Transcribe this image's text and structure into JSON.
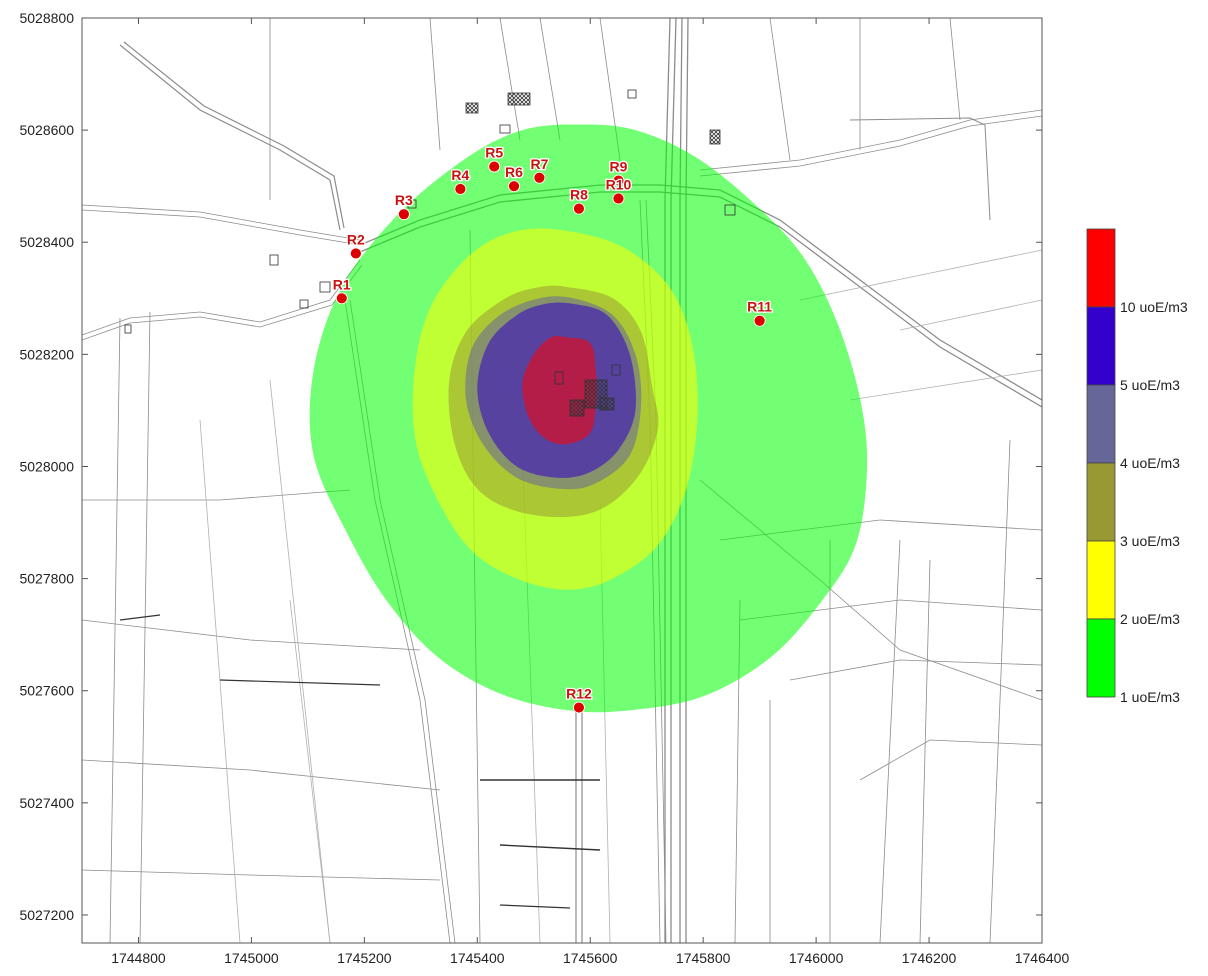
{
  "x_axis": {
    "range": [
      1744700,
      1746400
    ],
    "ticks": [
      {
        "value": 1744800,
        "label": "1744800"
      },
      {
        "value": 1745000,
        "label": "1745000"
      },
      {
        "value": 1745200,
        "label": "1745200"
      },
      {
        "value": 1745400,
        "label": "1745400"
      },
      {
        "value": 1745600,
        "label": "1745600"
      },
      {
        "value": 1745800,
        "label": "1745800"
      },
      {
        "value": 1746000,
        "label": "1746000"
      },
      {
        "value": 1746200,
        "label": "1746200"
      },
      {
        "value": 1746400,
        "label": "1746400"
      }
    ]
  },
  "y_axis": {
    "range": [
      5027150,
      5028800
    ],
    "ticks": [
      {
        "value": 5028800,
        "label": "5028800"
      },
      {
        "value": 5028600,
        "label": "5028600"
      },
      {
        "value": 5028400,
        "label": "5028400"
      },
      {
        "value": 5028200,
        "label": "5028200"
      },
      {
        "value": 5028000,
        "label": "5028000"
      },
      {
        "value": 5027800,
        "label": "5027800"
      },
      {
        "value": 5027600,
        "label": "5027600"
      },
      {
        "value": 5027400,
        "label": "5027400"
      },
      {
        "value": 5027200,
        "label": "5027200"
      }
    ]
  },
  "contours": [
    {
      "level": 1,
      "color": "#00ff00",
      "shape": [
        [
          1745580,
          5028610
        ],
        [
          1745680,
          5028600
        ],
        [
          1745790,
          5028550
        ],
        [
          1745900,
          5028460
        ],
        [
          1745980,
          5028370
        ],
        [
          1746040,
          5028250
        ],
        [
          1746080,
          5028110
        ],
        [
          1746090,
          5027990
        ],
        [
          1746070,
          5027860
        ],
        [
          1746010,
          5027760
        ],
        [
          1745920,
          5027660
        ],
        [
          1745800,
          5027590
        ],
        [
          1745670,
          5027565
        ],
        [
          1745560,
          5027565
        ],
        [
          1745440,
          5027595
        ],
        [
          1745330,
          5027660
        ],
        [
          1745240,
          5027760
        ],
        [
          1745170,
          5027880
        ],
        [
          1745110,
          5028020
        ],
        [
          1745110,
          5028170
        ],
        [
          1745160,
          5028320
        ],
        [
          1745260,
          5028450
        ],
        [
          1745380,
          5028550
        ],
        [
          1745480,
          5028600
        ]
      ]
    },
    {
      "level": 2,
      "color": "#ffff00",
      "shape": [
        [
          1745560,
          5028420
        ],
        [
          1745660,
          5028390
        ],
        [
          1745740,
          5028320
        ],
        [
          1745780,
          5028220
        ],
        [
          1745790,
          5028090
        ],
        [
          1745770,
          5027960
        ],
        [
          1745720,
          5027860
        ],
        [
          1745640,
          5027800
        ],
        [
          1745560,
          5027780
        ],
        [
          1745470,
          5027800
        ],
        [
          1745390,
          5027850
        ],
        [
          1745330,
          5027940
        ],
        [
          1745290,
          5028050
        ],
        [
          1745290,
          5028180
        ],
        [
          1745320,
          5028290
        ],
        [
          1745390,
          5028380
        ],
        [
          1745470,
          5028420
        ]
      ]
    },
    {
      "level": 3,
      "color": "#999933",
      "shape": [
        [
          1745560,
          5028320
        ],
        [
          1745640,
          5028300
        ],
        [
          1745690,
          5028240
        ],
        [
          1745710,
          5028140
        ],
        [
          1745720,
          5028070
        ],
        [
          1745690,
          5027990
        ],
        [
          1745630,
          5027930
        ],
        [
          1745560,
          5027910
        ],
        [
          1745470,
          5027920
        ],
        [
          1745400,
          5027960
        ],
        [
          1745360,
          5028040
        ],
        [
          1745350,
          5028150
        ],
        [
          1745380,
          5028240
        ],
        [
          1745450,
          5028300
        ],
        [
          1745510,
          5028320
        ]
      ]
    },
    {
      "level": 4,
      "color": "#666699",
      "shape": [
        [
          1745570,
          5028300
        ],
        [
          1745640,
          5028270
        ],
        [
          1745680,
          5028200
        ],
        [
          1745690,
          5028110
        ],
        [
          1745670,
          5028020
        ],
        [
          1745610,
          5027970
        ],
        [
          1745550,
          5027960
        ],
        [
          1745470,
          5027980
        ],
        [
          1745410,
          5028040
        ],
        [
          1745380,
          5028120
        ],
        [
          1745390,
          5028210
        ],
        [
          1745440,
          5028270
        ],
        [
          1745510,
          5028300
        ]
      ]
    },
    {
      "level": 5,
      "color": "#3300cc",
      "shape": [
        [
          1745570,
          5028290
        ],
        [
          1745630,
          5028270
        ],
        [
          1745670,
          5028200
        ],
        [
          1745680,
          5028100
        ],
        [
          1745650,
          5028030
        ],
        [
          1745600,
          5027990
        ],
        [
          1745540,
          5027980
        ],
        [
          1745470,
          5028000
        ],
        [
          1745420,
          5028060
        ],
        [
          1745400,
          5028140
        ],
        [
          1745420,
          5028220
        ],
        [
          1745470,
          5028270
        ],
        [
          1745520,
          5028290
        ]
      ]
    },
    {
      "level": 10,
      "color": "#ff0000",
      "shape": [
        [
          1745560,
          5028230
        ],
        [
          1745600,
          5028220
        ],
        [
          1745610,
          5028170
        ],
        [
          1745610,
          5028110
        ],
        [
          1745600,
          5028060
        ],
        [
          1745560,
          5028040
        ],
        [
          1745520,
          5028050
        ],
        [
          1745490,
          5028090
        ],
        [
          1745480,
          5028150
        ],
        [
          1745500,
          5028200
        ],
        [
          1745530,
          5028230
        ]
      ]
    }
  ],
  "receptors": [
    {
      "label": "R1",
      "x": 1745160,
      "y": 5028300
    },
    {
      "label": "R2",
      "x": 1745185,
      "y": 5028380
    },
    {
      "label": "R3",
      "x": 1745270,
      "y": 5028450
    },
    {
      "label": "R4",
      "x": 1745370,
      "y": 5028495
    },
    {
      "label": "R5",
      "x": 1745430,
      "y": 5028535
    },
    {
      "label": "R6",
      "x": 1745465,
      "y": 5028500
    },
    {
      "label": "R7",
      "x": 1745510,
      "y": 5028515
    },
    {
      "label": "R8",
      "x": 1745580,
      "y": 5028460
    },
    {
      "label": "R9",
      "x": 1745650,
      "y": 5028510
    },
    {
      "label": "R10",
      "x": 1745650,
      "y": 5028478
    },
    {
      "label": "R11",
      "x": 1745900,
      "y": 5028260
    },
    {
      "label": "R12",
      "x": 1745580,
      "y": 5027570
    }
  ],
  "legend": {
    "entries": [
      {
        "color": "#ff0000",
        "label": ""
      },
      {
        "color": "#3300cc",
        "label": "10 uoE/m3"
      },
      {
        "color": "#666699",
        "label": "5 uoE/m3"
      },
      {
        "color": "#999933",
        "label": "4 uoE/m3"
      },
      {
        "color": "#ffff00",
        "label": "3 uoE/m3"
      },
      {
        "color": "#00ff00",
        "label": "2 uoE/m3"
      }
    ],
    "bottom_label": "1 uoE/m3"
  },
  "colors": {
    "receptor": "#dd0000",
    "receptor_label": "#cc1111",
    "map_lines": "#888888",
    "frame": "#555555"
  }
}
